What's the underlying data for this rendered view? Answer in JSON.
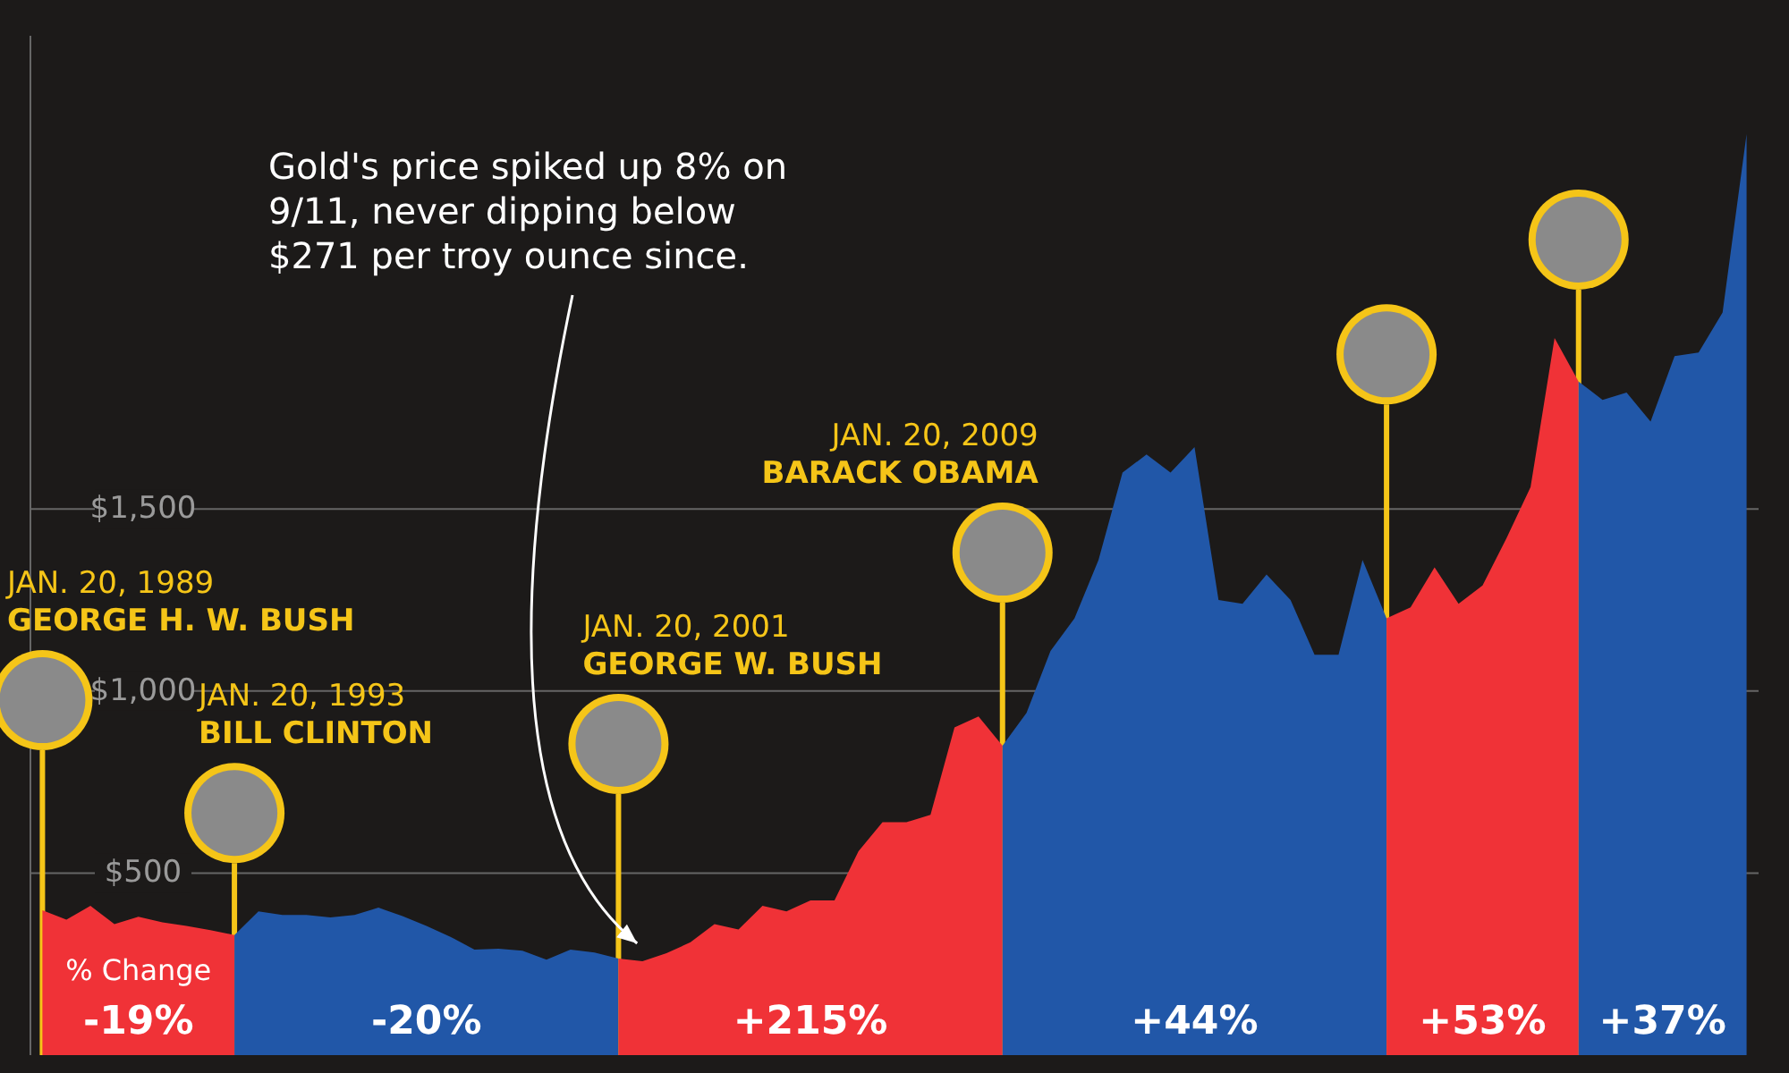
{
  "chart_data": {
    "type": "area",
    "tick_labels": "y",
    "grid": "y",
    "ylim": [
      0,
      2800
    ],
    "categories": [
      null,
      null,
      null,
      null,
      null,
      null,
      null,
      null,
      null,
      null,
      null,
      null,
      null,
      null,
      null,
      null,
      null,
      null,
      null,
      null,
      null,
      null,
      null,
      null,
      null,
      null,
      null,
      null,
      null,
      null,
      null,
      null,
      null,
      null,
      null,
      null,
      null,
      null,
      null,
      null,
      null,
      null,
      null,
      null,
      null,
      null,
      null,
      null,
      null,
      null,
      null,
      null,
      null,
      null,
      null,
      null,
      null,
      null,
      null,
      null,
      null,
      null,
      null,
      null,
      null,
      null,
      null,
      null,
      null,
      null,
      null,
      null
    ],
    "yticks": [
      {
        "value": 500,
        "label": "$500"
      },
      {
        "value": 1000,
        "label": "$1,000"
      },
      {
        "value": 1500,
        "label": "$1,500"
      }
    ],
    "series": [
      {
        "name": "-19%",
        "color": "#f03237",
        "values": [
          398,
          372,
          410,
          360,
          380,
          365,
          355,
          343,
          330,
          null,
          null,
          null,
          null,
          null,
          null,
          null,
          null,
          null,
          null,
          null,
          null,
          null,
          null,
          null,
          null,
          null,
          null,
          null,
          null,
          null,
          null,
          null,
          null,
          null,
          null,
          null,
          null,
          null,
          null,
          null,
          null,
          null,
          null,
          null,
          null,
          null,
          null,
          null,
          null,
          null,
          null,
          null,
          null,
          null,
          null,
          null,
          null,
          null,
          null,
          null,
          null,
          null,
          null,
          null,
          null,
          null,
          null,
          null,
          null,
          null,
          null,
          null
        ]
      },
      {
        "name": "-20%",
        "color": "#2157a8",
        "values": [
          null,
          null,
          null,
          null,
          null,
          null,
          null,
          null,
          330,
          395,
          385,
          385,
          378,
          385,
          405,
          382,
          355,
          325,
          290,
          292,
          287,
          262,
          290,
          282,
          265,
          null,
          null,
          null,
          null,
          null,
          null,
          null,
          null,
          null,
          null,
          null,
          null,
          null,
          null,
          null,
          null,
          null,
          null,
          null,
          null,
          null,
          null,
          null,
          null,
          null,
          null,
          null,
          null,
          null,
          null,
          null,
          null,
          null,
          null,
          null,
          null,
          null,
          null,
          null,
          null,
          null,
          null,
          null,
          null,
          null,
          null,
          null
        ]
      },
      {
        "name": "+215%",
        "color": "#f03237",
        "values": [
          null,
          null,
          null,
          null,
          null,
          null,
          null,
          null,
          null,
          null,
          null,
          null,
          null,
          null,
          null,
          null,
          null,
          null,
          null,
          null,
          null,
          null,
          null,
          null,
          265,
          258,
          280,
          310,
          360,
          345,
          410,
          395,
          425,
          425,
          560,
          640,
          640,
          660,
          900,
          930,
          850,
          null,
          null,
          null,
          null,
          null,
          null,
          null,
          null,
          null,
          null,
          null,
          null,
          null,
          null,
          null,
          null,
          null,
          null,
          null,
          null,
          null,
          null,
          null,
          null,
          null,
          null,
          null,
          null,
          null,
          null,
          null
        ]
      },
      {
        "name": "+44%",
        "color": "#2157a8",
        "values": [
          null,
          null,
          null,
          null,
          null,
          null,
          null,
          null,
          null,
          null,
          null,
          null,
          null,
          null,
          null,
          null,
          null,
          null,
          null,
          null,
          null,
          null,
          null,
          null,
          null,
          null,
          null,
          null,
          null,
          null,
          null,
          null,
          null,
          null,
          null,
          null,
          null,
          null,
          null,
          null,
          850,
          940,
          1110,
          1200,
          1360,
          1600,
          1650,
          1600,
          1670,
          1250,
          1240,
          1320,
          1250,
          1100,
          1100,
          1360,
          1200,
          null,
          null,
          null,
          null,
          null,
          null,
          null,
          null,
          null,
          null,
          null,
          null,
          null,
          null,
          null
        ]
      },
      {
        "name": "+53%",
        "color": "#f03237",
        "values": [
          null,
          null,
          null,
          null,
          null,
          null,
          null,
          null,
          null,
          null,
          null,
          null,
          null,
          null,
          null,
          null,
          null,
          null,
          null,
          null,
          null,
          null,
          null,
          null,
          null,
          null,
          null,
          null,
          null,
          null,
          null,
          null,
          null,
          null,
          null,
          null,
          null,
          null,
          null,
          null,
          null,
          null,
          null,
          null,
          null,
          null,
          null,
          null,
          null,
          null,
          null,
          null,
          null,
          null,
          null,
          null,
          1200,
          1230,
          1340,
          1240,
          1290,
          1420,
          1560,
          1970,
          1850,
          null,
          null,
          null,
          null,
          null,
          null,
          null
        ]
      },
      {
        "name": "+37%",
        "color": "#2157a8",
        "values": [
          null,
          null,
          null,
          null,
          null,
          null,
          null,
          null,
          null,
          null,
          null,
          null,
          null,
          null,
          null,
          null,
          null,
          null,
          null,
          null,
          null,
          null,
          null,
          null,
          null,
          null,
          null,
          null,
          null,
          null,
          null,
          null,
          null,
          null,
          null,
          null,
          null,
          null,
          null,
          null,
          null,
          null,
          null,
          null,
          null,
          null,
          null,
          null,
          null,
          null,
          null,
          null,
          null,
          null,
          null,
          null,
          null,
          null,
          null,
          null,
          null,
          null,
          null,
          null,
          1850,
          1800,
          1820,
          1740,
          1920,
          1930,
          2040,
          2530
        ]
      }
    ],
    "annotations": [
      "JAN. 20, 1989\nGEORGE H. W. BUSH",
      "JAN. 20, 1993\nBILL CLINTON",
      "JAN. 20, 2001\nGEORGE W. BUSH",
      "JAN. 20, 2009\nBARACK OBAMA",
      "Gold's price spiked up 8% on 9/11, never dipping below $271 per troy ounce since.",
      "% Change"
    ]
  }
}
